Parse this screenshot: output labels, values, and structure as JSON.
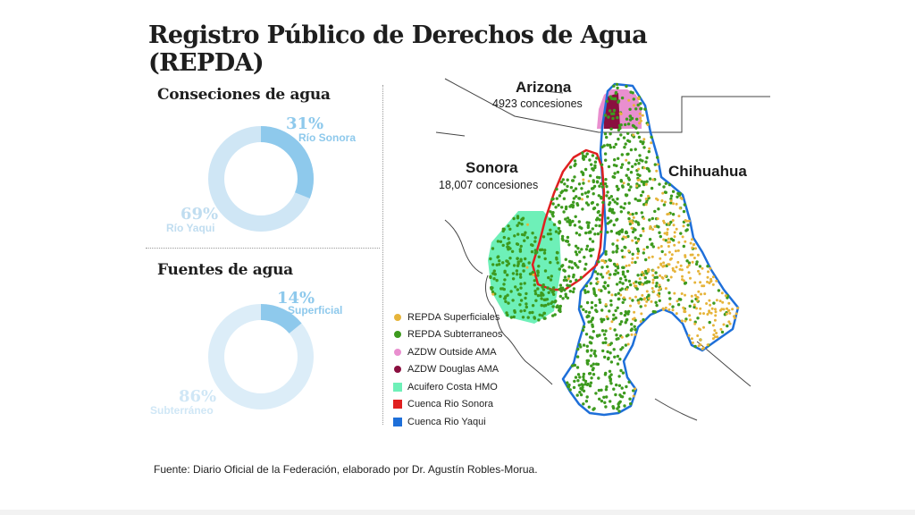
{
  "title_line1": "Registro Público de Derechos de Agua",
  "title_line2": "(REPDA)",
  "concesiones": {
    "heading": "Conseciones de agua",
    "highlight": {
      "pct": "31%",
      "label": "Río Sonora",
      "value": 31,
      "color": "#8ec9ec"
    },
    "rest": {
      "pct": "69%",
      "label": "Río Yaqui",
      "value": 69,
      "color": "#cfe6f5"
    }
  },
  "fuentes": {
    "heading": "Fuentes de agua",
    "highlight": {
      "pct": "14%",
      "label": "Superficial",
      "value": 14,
      "color": "#8ec9ec"
    },
    "rest": {
      "pct": "86%",
      "label": "Subterráneo",
      "value": 86,
      "color": "#dcedf8"
    }
  },
  "map": {
    "arizona": {
      "name": "Arizona",
      "sub": "4923 concesiones"
    },
    "sonora": {
      "name": "Sonora",
      "sub": "18,007 concesiones"
    },
    "chihuahua": {
      "name": "Chihuahua"
    }
  },
  "legend": [
    {
      "label": "REPDA Superficiales",
      "color": "#e6b43a",
      "shape": "dot"
    },
    {
      "label": "REPDA Subterraneos",
      "color": "#3d9a1e",
      "shape": "dot"
    },
    {
      "label": "AZDW Outside AMA",
      "color": "#e98fcf",
      "shape": "dot"
    },
    {
      "label": "AZDW Douglas AMA",
      "color": "#8a0f3f",
      "shape": "dot"
    },
    {
      "label": "Acuifero Costa HMO",
      "color": "#6ef0b8",
      "shape": "square"
    },
    {
      "label": "Cuenca Rio Sonora",
      "color": "#e02020",
      "shape": "square"
    },
    {
      "label": "Cuenca Rio Yaqui",
      "color": "#1e6fd9",
      "shape": "square"
    }
  ],
  "source": "Fuente: Diario Oficial de la Federación, elaborado por Dr. Agustín Robles-Morua."
}
